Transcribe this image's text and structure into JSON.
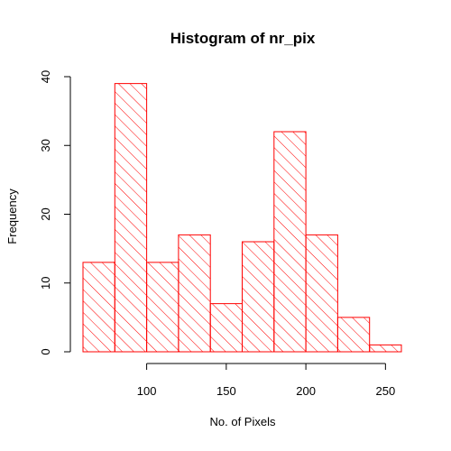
{
  "chart_data": {
    "type": "bar",
    "title": "Histogram of nr_pix",
    "xlabel": "No. of Pixels",
    "ylabel": "Frequency",
    "bins": [
      {
        "start": 60,
        "end": 80,
        "count": 13
      },
      {
        "start": 80,
        "end": 100,
        "count": 39
      },
      {
        "start": 100,
        "end": 120,
        "count": 13
      },
      {
        "start": 120,
        "end": 140,
        "count": 17
      },
      {
        "start": 140,
        "end": 160,
        "count": 7
      },
      {
        "start": 160,
        "end": 180,
        "count": 16
      },
      {
        "start": 180,
        "end": 200,
        "count": 32
      },
      {
        "start": 200,
        "end": 220,
        "count": 17
      },
      {
        "start": 220,
        "end": 240,
        "count": 5
      },
      {
        "start": 240,
        "end": 260,
        "count": 1
      }
    ],
    "xlim": [
      60,
      260
    ],
    "ylim": [
      0,
      40
    ],
    "x_ticks": [
      100,
      150,
      200,
      250
    ],
    "x_tick_labels": [
      "100",
      "150",
      "200",
      "250"
    ],
    "y_ticks": [
      0,
      10,
      20,
      30,
      40
    ],
    "y_tick_labels": [
      "0",
      "10",
      "20",
      "30",
      "40"
    ],
    "bar_color": "#ff0000",
    "fill_pattern": "diagonal-hatch",
    "grid": false
  }
}
